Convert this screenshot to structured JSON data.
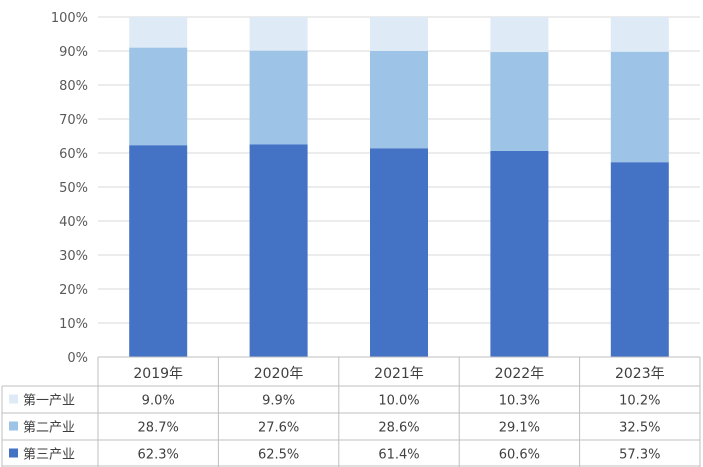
{
  "chart_data": {
    "type": "bar",
    "stacked": true,
    "percent_stacked": true,
    "categories": [
      "2019年",
      "2020年",
      "2021年",
      "2022年",
      "2023年"
    ],
    "series": [
      {
        "name": "第三产业",
        "values": [
          62.3,
          62.5,
          61.4,
          60.6,
          57.3
        ],
        "labels": [
          "62.3%",
          "62.5%",
          "61.4%",
          "60.6%",
          "57.3%"
        ],
        "color": "#4472c4"
      },
      {
        "name": "第二产业",
        "values": [
          28.7,
          27.6,
          28.6,
          29.1,
          32.5
        ],
        "labels": [
          "28.7%",
          "27.6%",
          "28.6%",
          "29.1%",
          "32.5%"
        ],
        "color": "#9dc3e6"
      },
      {
        "name": "第一产业",
        "values": [
          9.0,
          9.9,
          10.0,
          10.3,
          10.2
        ],
        "labels": [
          "9.0%",
          "9.9%",
          "10.0%",
          "10.3%",
          "10.2%"
        ],
        "color": "#deebf7"
      }
    ],
    "ylim": [
      0,
      100
    ],
    "yticks": [
      "0%",
      "10%",
      "20%",
      "30%",
      "40%",
      "50%",
      "60%",
      "70%",
      "80%",
      "90%",
      "100%"
    ],
    "grid": true,
    "legend": "data-table-below",
    "table_row_order": [
      "第一产业",
      "第二产业",
      "第三产业"
    ]
  }
}
